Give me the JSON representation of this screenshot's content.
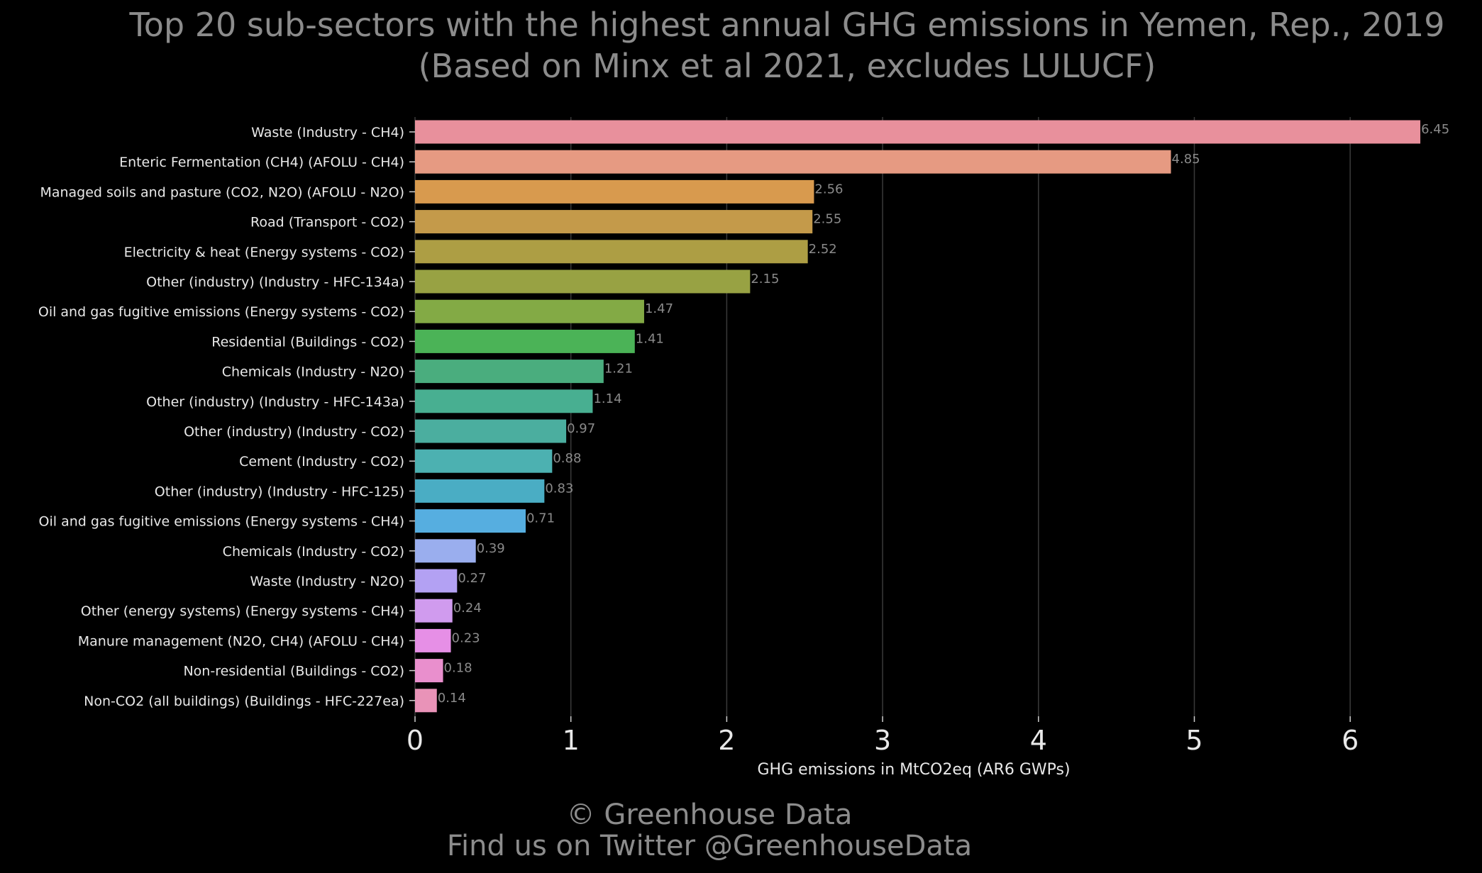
{
  "title": {
    "line1": "Top 20 sub-sectors with the highest annual GHG emissions in Yemen, Rep., 2019",
    "line2": "(Based on Minx et al 2021, excludes LULUCF)"
  },
  "footer": {
    "line1": "© Greenhouse Data",
    "line2": "Find us on Twitter @GreenhouseData"
  },
  "chart_data": {
    "type": "bar",
    "orientation": "horizontal",
    "title": "Top 20 sub-sectors with the highest annual GHG emissions in Yemen, Rep., 2019 (Based on Minx et al 2021, excludes LULUCF)",
    "xlabel": "GHG emissions in MtCO2eq (AR6 GWPs)",
    "ylabel": "",
    "xlim": [
      0,
      6.6
    ],
    "xticks": [
      0,
      1,
      2,
      3,
      4,
      5,
      6
    ],
    "grid": "vertical",
    "categories": [
      "Waste (Industry - CH4)",
      "Enteric Fermentation (CH4) (AFOLU - CH4)",
      "Managed soils and pasture (CO2, N2O) (AFOLU - N2O)",
      "Road (Transport - CO2)",
      "Electricity & heat (Energy systems - CO2)",
      "Other (industry) (Industry - HFC-134a)",
      "Oil and gas fugitive emissions (Energy systems - CO2)",
      "Residential (Buildings - CO2)",
      "Chemicals (Industry - N2O)",
      "Other (industry) (Industry - HFC-143a)",
      "Other (industry) (Industry - CO2)",
      "Cement (Industry - CO2)",
      "Other (industry) (Industry - HFC-125)",
      "Oil and gas fugitive emissions (Energy systems - CH4)",
      "Chemicals (Industry - CO2)",
      "Waste (Industry - N2O)",
      "Other (energy systems) (Energy systems - CH4)",
      "Manure management (N2O, CH4) (AFOLU - CH4)",
      "Non-residential (Buildings - CO2)",
      "Non-CO2 (all buildings) (Buildings - HFC-227ea)"
    ],
    "values": [
      6.45,
      4.85,
      2.56,
      2.55,
      2.52,
      2.15,
      1.47,
      1.41,
      1.21,
      1.14,
      0.97,
      0.88,
      0.83,
      0.71,
      0.39,
      0.27,
      0.24,
      0.23,
      0.18,
      0.14
    ],
    "value_labels": [
      "6.45",
      "4.85",
      "2.56",
      "2.55",
      "2.52",
      "2.15",
      "1.47",
      "1.41",
      "1.21",
      "1.14",
      "0.97",
      "0.88",
      "0.83",
      "0.71",
      "0.39",
      "0.27",
      "0.24",
      "0.23",
      "0.18",
      "0.14"
    ],
    "colors": [
      "#e8909c",
      "#e69a82",
      "#d89a4e",
      "#c49a4a",
      "#ad9e44",
      "#98a243",
      "#83aa45",
      "#4bb357",
      "#4aad7e",
      "#48af91",
      "#4bae9f",
      "#4cb1b1",
      "#4aadc4",
      "#56aee0",
      "#9aaeee",
      "#b3a1f3",
      "#d09bee",
      "#e68fe6",
      "#e98fcd",
      "#e993b8"
    ]
  }
}
